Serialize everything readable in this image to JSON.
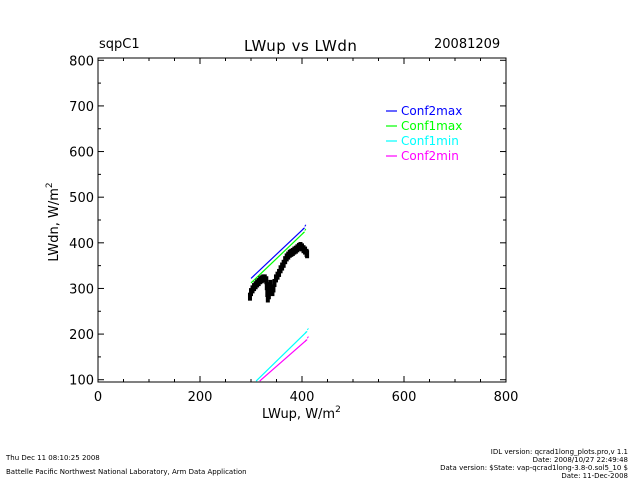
{
  "header": {
    "site": "sqpC1",
    "title": "LWup vs LWdn",
    "date": "20081209"
  },
  "footer": {
    "timestamp": "Thu Dec 11 08:10:25 2008",
    "org": "Battelle Pacific Northwest National Laboratory, Arm Data Application",
    "idl_version": "IDL version: qcrad1long_plots.pro,v 1.1",
    "code_date": "Date: 2008/10/27 22:49:48",
    "data_version": "Data version: $State: vap-qcrad1long-3.8-0.sol5_10 $",
    "data_date": "Date: 11-Dec-2008"
  },
  "chart_data": {
    "type": "scatter",
    "title": "LWup vs LWdn",
    "xlabel": "LWup, W/m",
    "xlabel_sup": "2",
    "ylabel": "LWdn, W/m",
    "ylabel_sup": "2",
    "xlim": [
      0,
      800
    ],
    "ylim": [
      95,
      805
    ],
    "xticks": [
      0,
      200,
      400,
      600,
      800
    ],
    "yticks": [
      100,
      200,
      300,
      400,
      500,
      600,
      700,
      800
    ],
    "xtick_labels": [
      "0",
      "200",
      "400",
      "600",
      "800"
    ],
    "ytick_labels": [
      "100",
      "200",
      "300",
      "400",
      "500",
      "600",
      "700",
      "800"
    ],
    "grid": false,
    "legend_position": "top-right",
    "series": [
      {
        "name": "Conf2max",
        "color": "#0000ff",
        "x": [
          300,
          405
        ],
        "y": [
          322,
          433
        ]
      },
      {
        "name": "Conf1max",
        "color": "#00ff00",
        "x": [
          300,
          405
        ],
        "y": [
          312,
          424
        ]
      },
      {
        "name": "Conf1min",
        "color": "#00ffff",
        "x": [
          310,
          410
        ],
        "y": [
          97,
          206
        ]
      },
      {
        "name": "Conf2min",
        "color": "#ff00ff",
        "x": [
          317,
          410
        ],
        "y": [
          97,
          188
        ]
      }
    ],
    "observations": {
      "color": "#000000",
      "points": [
        [
          298,
          282
        ],
        [
          300,
          292
        ],
        [
          303,
          298
        ],
        [
          306,
          303
        ],
        [
          309,
          307
        ],
        [
          312,
          311
        ],
        [
          315,
          314
        ],
        [
          318,
          318
        ],
        [
          321,
          320
        ],
        [
          324,
          322
        ],
        [
          327,
          322
        ],
        [
          330,
          318
        ],
        [
          331,
          305
        ],
        [
          332,
          290
        ],
        [
          333,
          278
        ],
        [
          335,
          285
        ],
        [
          337,
          300
        ],
        [
          338,
          310
        ],
        [
          340,
          300
        ],
        [
          342,
          292
        ],
        [
          344,
          300
        ],
        [
          346,
          312
        ],
        [
          349,
          322
        ],
        [
          352,
          328
        ],
        [
          355,
          334
        ],
        [
          358,
          342
        ],
        [
          361,
          348
        ],
        [
          364,
          354
        ],
        [
          367,
          362
        ],
        [
          370,
          368
        ],
        [
          373,
          372
        ],
        [
          376,
          376
        ],
        [
          379,
          378
        ],
        [
          382,
          380
        ],
        [
          385,
          383
        ],
        [
          388,
          385
        ],
        [
          391,
          388
        ],
        [
          394,
          391
        ],
        [
          397,
          393
        ],
        [
          400,
          390
        ],
        [
          403,
          386
        ],
        [
          406,
          383
        ],
        [
          409,
          378
        ],
        [
          410,
          375
        ]
      ]
    }
  }
}
